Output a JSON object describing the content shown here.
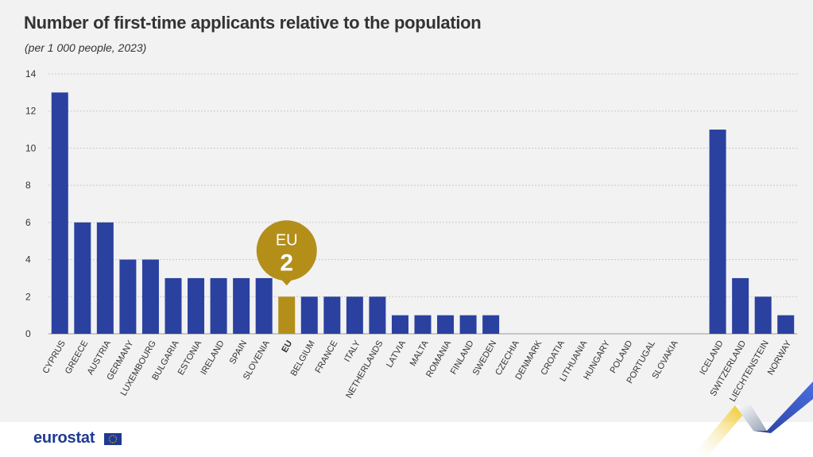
{
  "title": "Number of first-time applicants relative to the population",
  "subtitle": "(per 1 000 people, 2023)",
  "logo": "eurostat",
  "colors": {
    "bar": "#2a41a0",
    "highlight": "#b38f1a",
    "grid": "#c9c9c9",
    "axis_text": "#333333"
  },
  "callout": {
    "label": "EU",
    "value": "2"
  },
  "chart_data": {
    "type": "bar",
    "title": "Number of first-time applicants relative to the population",
    "subtitle": "(per 1 000 people, 2023)",
    "xlabel": "",
    "ylabel": "",
    "ylim": [
      0,
      14
    ],
    "yticks": [
      0,
      2,
      4,
      6,
      8,
      10,
      12,
      14
    ],
    "grid": true,
    "highlight_category": "EU",
    "categories": [
      "CYPRUS",
      "GREECE",
      "AUSTRIA",
      "GERMANY",
      "LUXEMBOURG",
      "BULGARIA",
      "ESTONIA",
      "IRELAND",
      "SPAIN",
      "SLOVENIA",
      "EU",
      "BELGIUM",
      "FRANCE",
      "ITALY",
      "NETHERLANDS",
      "LATVIA",
      "MALTA",
      "ROMANIA",
      "FINLAND",
      "SWEDEN",
      "CZECHIA",
      "DENMARK",
      "CROATIA",
      "LITHUANIA",
      "HUNGARY",
      "POLAND",
      "PORTUGAL",
      "SLOVAKIA",
      "",
      "ICELAND",
      "SWITZERLAND",
      "LIECHTENSTEIN",
      "NORWAY"
    ],
    "values": [
      13,
      6,
      6,
      4,
      4,
      3,
      3,
      3,
      3,
      3,
      2,
      2,
      2,
      2,
      2,
      1,
      1,
      1,
      1,
      1,
      0,
      0,
      0,
      0,
      0,
      0,
      0,
      0,
      null,
      11,
      3,
      2,
      1
    ]
  }
}
